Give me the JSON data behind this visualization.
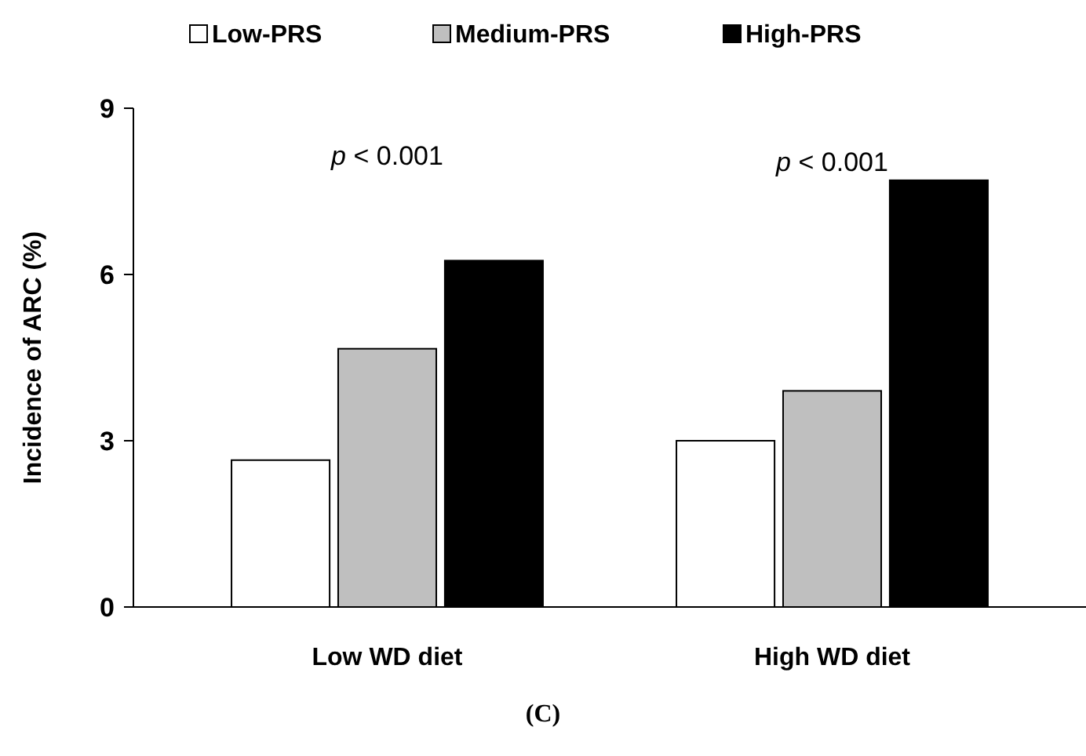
{
  "chart_data": {
    "type": "bar",
    "ylabel": "Incidence of ARC (%)",
    "categories": [
      "Low WD diet",
      "High WD diet"
    ],
    "series": [
      {
        "name": "Low-PRS",
        "color": "#ffffff",
        "values": [
          2.65,
          3.0
        ]
      },
      {
        "name": "Medium-PRS",
        "color": "#bfbfbf",
        "values": [
          4.66,
          3.9
        ]
      },
      {
        "name": "High-PRS",
        "color": "#000000",
        "values": [
          6.25,
          7.7
        ]
      }
    ],
    "ylim": [
      0,
      9
    ],
    "yticks": [
      0,
      3,
      6,
      9
    ],
    "grid": false,
    "legend": "top",
    "annotations": [
      "p < 0.001",
      "p < 0.001",
      "(C)"
    ]
  }
}
